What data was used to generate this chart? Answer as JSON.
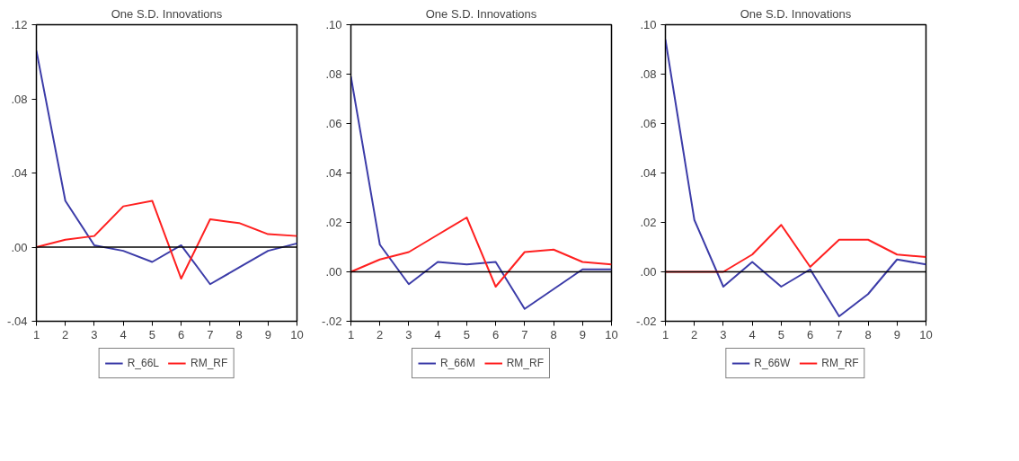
{
  "chart_data": [
    {
      "type": "line",
      "title": "One S.D. Innovations",
      "x": [
        1,
        2,
        3,
        4,
        5,
        6,
        7,
        8,
        9,
        10
      ],
      "xlim": [
        1,
        10
      ],
      "xticks": [
        1,
        2,
        3,
        4,
        5,
        6,
        7,
        8,
        9,
        10
      ],
      "ylim": [
        -0.04,
        0.12
      ],
      "yticks": [
        {
          "value": -0.04,
          "label": "-.04"
        },
        {
          "value": 0.0,
          "label": ".00"
        },
        {
          "value": 0.04,
          "label": ".04"
        },
        {
          "value": 0.08,
          "label": ".08"
        },
        {
          "value": 0.12,
          "label": ".12"
        }
      ],
      "grid": false,
      "legend": "bottom",
      "marker": "none",
      "line_style": "solid",
      "series": [
        {
          "name": "R_66L",
          "color": "#3c3ca8",
          "values": [
            0.106,
            0.025,
            0.001,
            -0.002,
            -0.008,
            0.001,
            -0.02,
            -0.011,
            -0.002,
            0.002
          ]
        },
        {
          "name": "RM_RF",
          "color": "#ff2020",
          "values": [
            0.0,
            0.004,
            0.006,
            0.022,
            0.025,
            -0.017,
            0.015,
            0.013,
            0.007,
            0.006
          ]
        }
      ],
      "ref_lines": [
        {
          "axis": "y",
          "value": 0,
          "label": null,
          "color": "#000000"
        }
      ]
    },
    {
      "type": "line",
      "title": "One S.D. Innovations",
      "x": [
        1,
        2,
        3,
        4,
        5,
        6,
        7,
        8,
        9,
        10
      ],
      "xlim": [
        1,
        10
      ],
      "xticks": [
        1,
        2,
        3,
        4,
        5,
        6,
        7,
        8,
        9,
        10
      ],
      "ylim": [
        -0.02,
        0.1
      ],
      "yticks": [
        {
          "value": -0.02,
          "label": "-.02"
        },
        {
          "value": 0.0,
          "label": ".00"
        },
        {
          "value": 0.02,
          "label": ".02"
        },
        {
          "value": 0.04,
          "label": ".04"
        },
        {
          "value": 0.06,
          "label": ".06"
        },
        {
          "value": 0.08,
          "label": ".08"
        },
        {
          "value": 0.1,
          "label": ".10"
        }
      ],
      "grid": false,
      "legend": "bottom",
      "marker": "none",
      "line_style": "solid",
      "series": [
        {
          "name": "R_66M",
          "color": "#3c3ca8",
          "values": [
            0.079,
            0.011,
            -0.005,
            0.004,
            0.003,
            0.004,
            -0.015,
            -0.007,
            0.001,
            0.001
          ]
        },
        {
          "name": "RM_RF",
          "color": "#ff2020",
          "values": [
            0.0,
            0.005,
            0.008,
            0.015,
            0.022,
            -0.006,
            0.008,
            0.009,
            0.004,
            0.003
          ]
        }
      ],
      "ref_lines": [
        {
          "axis": "y",
          "value": 0,
          "label": null,
          "color": "#000000"
        }
      ]
    },
    {
      "type": "line",
      "title": "One S.D. Innovations",
      "x": [
        1,
        2,
        3,
        4,
        5,
        6,
        7,
        8,
        9,
        10
      ],
      "xlim": [
        1,
        10
      ],
      "xticks": [
        1,
        2,
        3,
        4,
        5,
        6,
        7,
        8,
        9,
        10
      ],
      "ylim": [
        -0.02,
        0.1
      ],
      "yticks": [
        {
          "value": -0.02,
          "label": "-.02"
        },
        {
          "value": 0.0,
          "label": ".00"
        },
        {
          "value": 0.02,
          "label": ".02"
        },
        {
          "value": 0.04,
          "label": ".04"
        },
        {
          "value": 0.06,
          "label": ".06"
        },
        {
          "value": 0.08,
          "label": ".08"
        },
        {
          "value": 0.1,
          "label": ".10"
        }
      ],
      "grid": false,
      "legend": "bottom",
      "marker": "none",
      "line_style": "solid",
      "series": [
        {
          "name": "R_66W",
          "color": "#3c3ca8",
          "values": [
            0.094,
            0.021,
            -0.006,
            0.004,
            -0.006,
            0.001,
            -0.018,
            -0.009,
            0.005,
            0.003
          ]
        },
        {
          "name": "RM_RF",
          "color": "#ff2020",
          "values": [
            0.0,
            0.0,
            0.0,
            0.007,
            0.019,
            0.002,
            0.013,
            0.013,
            0.007,
            0.006
          ]
        }
      ],
      "ref_lines": [
        {
          "axis": "y",
          "value": 0,
          "label": null,
          "color": "#000000"
        }
      ]
    }
  ]
}
